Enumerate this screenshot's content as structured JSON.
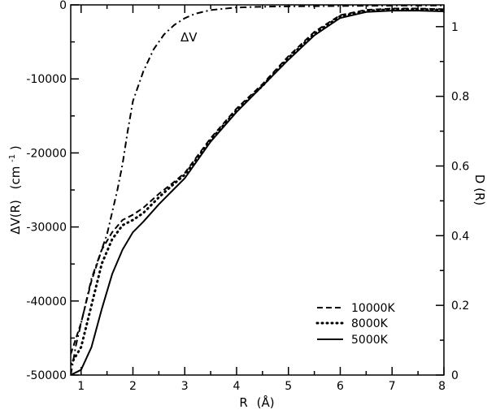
{
  "chart_data": {
    "type": "line",
    "xlabel_main": "R",
    "xlabel_unit": "(Å)",
    "ylabel_left_main": "ΔV(R)",
    "ylabel_left_unit": "(cm",
    "ylabel_left_exp": "-1",
    "ylabel_left_close": ")",
    "ylabel_right": "D (R)",
    "xlim": [
      0.8,
      8
    ],
    "ylim_left": [
      -50000,
      0
    ],
    "ylim_right": [
      0,
      1.0625
    ],
    "x_ticks": [
      "1",
      "2",
      "3",
      "4",
      "5",
      "6",
      "7",
      "8"
    ],
    "y_ticks_left": [
      "0",
      "-10000",
      "-20000",
      "-30000",
      "-40000",
      "-50000"
    ],
    "y_ticks_right": [
      "0",
      "0.2",
      "0.4",
      "0.6",
      "0.8",
      "1"
    ],
    "annotation": "ΔV",
    "legend_position": "bottom-right",
    "series": [
      {
        "name": "ΔV",
        "axis": "left",
        "style": "dashdot",
        "x": [
          0.8,
          0.9,
          1.0,
          1.1,
          1.2,
          1.3,
          1.4,
          1.5,
          1.6,
          1.7,
          1.8,
          1.9,
          2.0,
          2.2,
          2.4,
          2.6,
          2.8,
          3.0,
          3.2,
          3.5,
          4.0,
          4.5,
          5.0,
          6.0,
          7.0,
          8.0
        ],
        "y": [
          -50000,
          -46000,
          -43000,
          -40000,
          -37000,
          -35000,
          -33000,
          -31000,
          -28000,
          -25000,
          -21500,
          -17000,
          -13000,
          -9000,
          -6000,
          -4000,
          -2700,
          -1800,
          -1200,
          -700,
          -350,
          -250,
          -200,
          -150,
          -100,
          -80
        ]
      },
      {
        "name": "10000K",
        "axis": "right",
        "style": "dashed",
        "x": [
          0.8,
          1.0,
          1.2,
          1.4,
          1.6,
          1.8,
          2.0,
          2.2,
          2.5,
          2.8,
          3.0,
          3.5,
          4.0,
          4.5,
          5.0,
          5.5,
          6.0,
          6.5,
          7.0,
          7.5,
          8.0
        ],
        "y": [
          0.06,
          0.15,
          0.27,
          0.36,
          0.41,
          0.445,
          0.46,
          0.48,
          0.52,
          0.555,
          0.58,
          0.68,
          0.765,
          0.835,
          0.915,
          0.985,
          1.033,
          1.048,
          1.052,
          1.052,
          1.05
        ]
      },
      {
        "name": "8000K",
        "axis": "right",
        "style": "dotted",
        "x": [
          0.8,
          1.0,
          1.2,
          1.4,
          1.6,
          1.8,
          2.0,
          2.2,
          2.5,
          2.8,
          3.0,
          3.5,
          4.0,
          4.5,
          5.0,
          5.5,
          6.0,
          6.5,
          7.0,
          7.5,
          8.0
        ],
        "y": [
          0.03,
          0.08,
          0.2,
          0.32,
          0.39,
          0.43,
          0.445,
          0.465,
          0.51,
          0.55,
          0.575,
          0.675,
          0.76,
          0.83,
          0.91,
          0.98,
          1.03,
          1.045,
          1.05,
          1.05,
          1.048
        ]
      },
      {
        "name": "5000K",
        "axis": "right",
        "style": "solid",
        "x": [
          0.8,
          1.0,
          1.2,
          1.4,
          1.6,
          1.8,
          2.0,
          2.2,
          2.5,
          2.8,
          3.0,
          3.5,
          4.0,
          4.5,
          5.0,
          5.5,
          6.0,
          6.5,
          7.0,
          7.5,
          8.0
        ],
        "y": [
          0.0,
          0.015,
          0.08,
          0.19,
          0.29,
          0.36,
          0.41,
          0.44,
          0.49,
          0.535,
          0.565,
          0.67,
          0.755,
          0.83,
          0.905,
          0.975,
          1.025,
          1.042,
          1.046,
          1.046,
          1.044
        ]
      }
    ],
    "legend": [
      {
        "label": "10000K",
        "style": "dashed"
      },
      {
        "label": "8000K",
        "style": "dotted"
      },
      {
        "label": "5000K",
        "style": "solid"
      }
    ]
  }
}
